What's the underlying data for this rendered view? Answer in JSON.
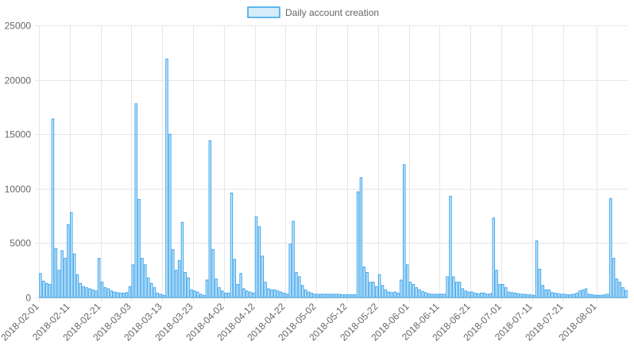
{
  "chart_data": {
    "type": "bar",
    "legend": {
      "label": "Daily account creation",
      "position": "top"
    },
    "colors": {
      "bar_fill": "#d6ecfa",
      "bar_stroke": "#36a2eb",
      "grid": "#e6e6e6",
      "axis_text": "#666666"
    },
    "grid": true,
    "ylim": [
      0,
      25000
    ],
    "yticks": [
      0,
      5000,
      10000,
      15000,
      20000,
      25000
    ],
    "x_start": "2018-02-01",
    "x_end": "2018-08-01",
    "xtick_labels": [
      "2018-02-01",
      "2018-02-11",
      "2018-02-21",
      "2018-03-03",
      "2018-03-13",
      "2018-03-23",
      "2018-04-02",
      "2018-04-12",
      "2018-04-22",
      "2018-05-02",
      "2018-05-12",
      "2018-05-22",
      "2018-06-01",
      "2018-06-11",
      "2018-06-21",
      "2018-07-01",
      "2018-07-11",
      "2018-07-21",
      "2018-08-01"
    ],
    "values": [
      2200,
      1500,
      1300,
      1200,
      16400,
      4500,
      2500,
      4300,
      3600,
      6700,
      7800,
      4000,
      2100,
      1300,
      1000,
      900,
      800,
      700,
      600,
      3600,
      1400,
      900,
      800,
      600,
      500,
      450,
      400,
      400,
      450,
      1000,
      3000,
      17800,
      9000,
      3600,
      3000,
      1800,
      1300,
      900,
      400,
      300,
      200,
      21900,
      15000,
      4400,
      2500,
      3400,
      6900,
      2300,
      1800,
      700,
      600,
      500,
      300,
      200,
      1600,
      14400,
      4400,
      1700,
      900,
      600,
      400,
      400,
      9600,
      3500,
      1200,
      2200,
      800,
      600,
      500,
      400,
      7400,
      6500,
      3800,
      1400,
      800,
      700,
      700,
      600,
      500,
      400,
      300,
      4900,
      7000,
      2300,
      1900,
      1100,
      700,
      500,
      400,
      300,
      300,
      300,
      300,
      300,
      300,
      300,
      300,
      300,
      250,
      250,
      250,
      250,
      250,
      9700,
      11000,
      2800,
      2300,
      1400,
      1400,
      1000,
      2100,
      1100,
      700,
      500,
      450,
      500,
      400,
      1600,
      12200,
      3000,
      1400,
      1200,
      900,
      700,
      550,
      450,
      350,
      300,
      300,
      300,
      300,
      300,
      1900,
      9300,
      1900,
      1400,
      1400,
      800,
      600,
      500,
      500,
      400,
      350,
      400,
      400,
      300,
      350,
      7300,
      2500,
      1200,
      1200,
      900,
      500,
      450,
      400,
      350,
      300,
      300,
      250,
      250,
      200,
      5200,
      2600,
      1100,
      700,
      700,
      450,
      400,
      350,
      300,
      300,
      250,
      250,
      300,
      400,
      600,
      700,
      800,
      300,
      250,
      200,
      200,
      200,
      250,
      300,
      9100,
      3600,
      1700,
      1400,
      900,
      650
    ]
  }
}
